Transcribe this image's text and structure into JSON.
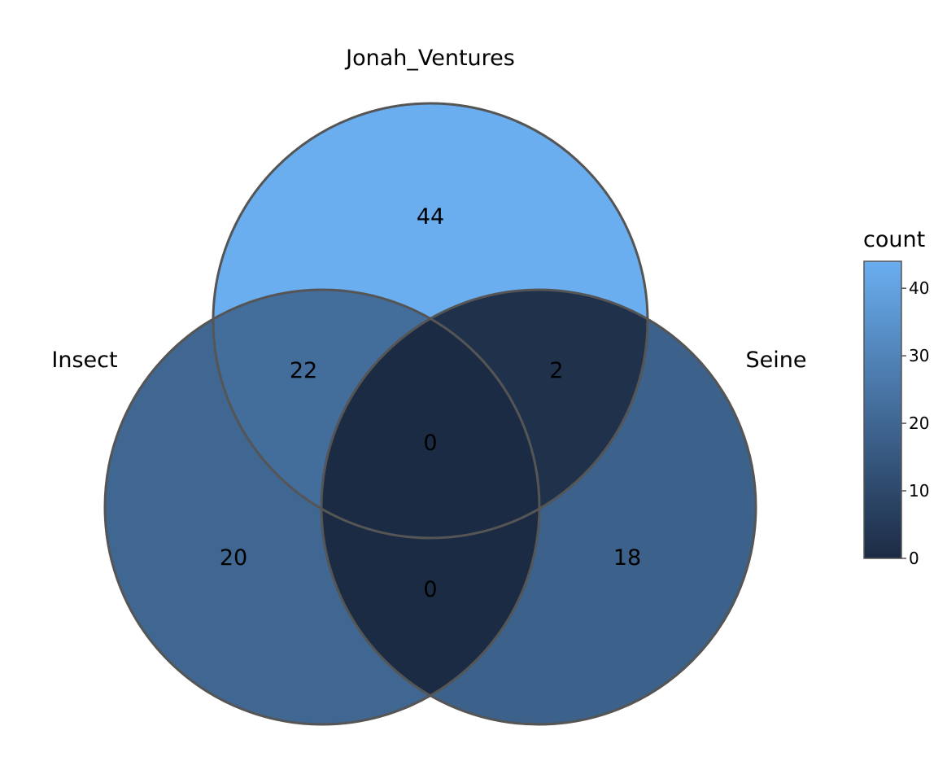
{
  "chart_data": {
    "type": "venn",
    "sets": [
      {
        "id": "J",
        "name": "Jonah_Ventures"
      },
      {
        "id": "I",
        "name": "Insect"
      },
      {
        "id": "S",
        "name": "Seine"
      }
    ],
    "regions": [
      {
        "key": "J",
        "sets": [
          "Jonah_Ventures"
        ],
        "count": 44
      },
      {
        "key": "I",
        "sets": [
          "Insect"
        ],
        "count": 20
      },
      {
        "key": "S",
        "sets": [
          "Seine"
        ],
        "count": 18
      },
      {
        "key": "IJ",
        "sets": [
          "Insect",
          "Jonah_Ventures"
        ],
        "count": 22
      },
      {
        "key": "JS",
        "sets": [
          "Jonah_Ventures",
          "Seine"
        ],
        "count": 2
      },
      {
        "key": "IS",
        "sets": [
          "Insect",
          "Seine"
        ],
        "count": 0
      },
      {
        "key": "IJS",
        "sets": [
          "Insect",
          "Jonah_Ventures",
          "Seine"
        ],
        "count": 0
      }
    ],
    "legend": {
      "title": "count",
      "min": 0,
      "max": 44,
      "ticks": [
        0,
        10,
        20,
        30,
        40
      ],
      "low_color": "#1c2b44",
      "high_color": "#6aaef0",
      "placement": "right"
    },
    "outline_color": "#555555"
  }
}
